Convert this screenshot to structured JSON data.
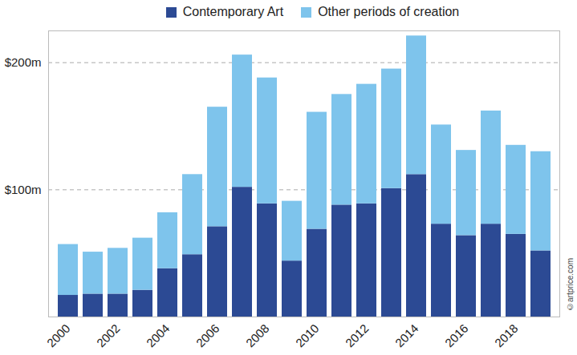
{
  "chart_data": {
    "type": "bar",
    "stacked": true,
    "categories": [
      "2000",
      null,
      "2002",
      null,
      "2004",
      null,
      "2006",
      null,
      "2008",
      null,
      "2010",
      null,
      "2012",
      null,
      "2014",
      null,
      "2016",
      null,
      "2018",
      null
    ],
    "series": [
      {
        "name": "Contemporary Art",
        "color": "#2c4a94",
        "values": [
          17,
          18,
          18,
          21,
          38,
          49,
          71,
          102,
          89,
          44,
          69,
          88,
          89,
          101,
          112,
          73,
          64,
          73,
          65,
          52
        ]
      },
      {
        "name": "Other periods of creation",
        "color": "#7ec4ec",
        "values": [
          40,
          33,
          36,
          41,
          44,
          63,
          94,
          104,
          99,
          47,
          92,
          87,
          94,
          94,
          109,
          78,
          67,
          89,
          70,
          78
        ]
      }
    ],
    "ylim": [
      0,
      225
    ],
    "yticks": [
      {
        "value": 100,
        "label": "$100m"
      },
      {
        "value": 200,
        "label": "$200m"
      }
    ],
    "grid": true,
    "legend": "top",
    "annotations": [
      "©artprice.com"
    ]
  }
}
